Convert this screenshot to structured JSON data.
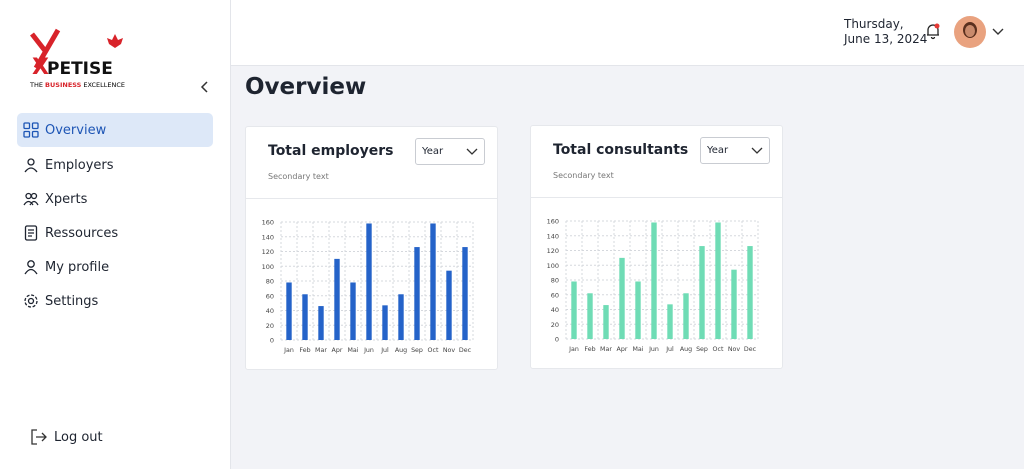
{
  "logo": {
    "mark": "X",
    "name": "PETISE",
    "tagline_start": "THE",
    "tagline_highlight": "BUSINESS",
    "tagline_end": "EXCELLENCE"
  },
  "sidebar": {
    "nav": [
      "Overview",
      "Employers",
      "Xperts",
      "Ressources",
      "My profile",
      "Settings"
    ],
    "active": 0,
    "logout": "Log out"
  },
  "header": {
    "date_line1": "Thursday,",
    "date_line2": "June 13, 2024"
  },
  "page_title": "Overview",
  "chart_data": [
    {
      "type": "bar",
      "title": "Total employers",
      "subtitle": "Secondary text",
      "filter": "Year",
      "categories": [
        "Jan",
        "Feb",
        "Mar",
        "Apr",
        "Mai",
        "Jun",
        "Jul",
        "Aug",
        "Sep",
        "Oct",
        "Nov",
        "Dec"
      ],
      "values": [
        78,
        62,
        46,
        110,
        78,
        158,
        47,
        62,
        126,
        158,
        94,
        126
      ],
      "color": "#2563c9",
      "ylim": [
        0,
        160
      ],
      "yticks": [
        0,
        20,
        40,
        60,
        80,
        100,
        120,
        140,
        160
      ],
      "grid": true
    },
    {
      "type": "bar",
      "title": "Total consultants",
      "subtitle": "Secondary text",
      "filter": "Year",
      "categories": [
        "Jan",
        "Feb",
        "Mar",
        "Apr",
        "Mai",
        "Jun",
        "Jul",
        "Aug",
        "Sep",
        "Oct",
        "Nov",
        "Dec"
      ],
      "values": [
        78,
        62,
        46,
        110,
        78,
        158,
        47,
        62,
        126,
        158,
        94,
        126
      ],
      "color": "#6fdcb5",
      "ylim": [
        0,
        160
      ],
      "yticks": [
        0,
        20,
        40,
        60,
        80,
        100,
        120,
        140,
        160
      ],
      "grid": true
    }
  ]
}
